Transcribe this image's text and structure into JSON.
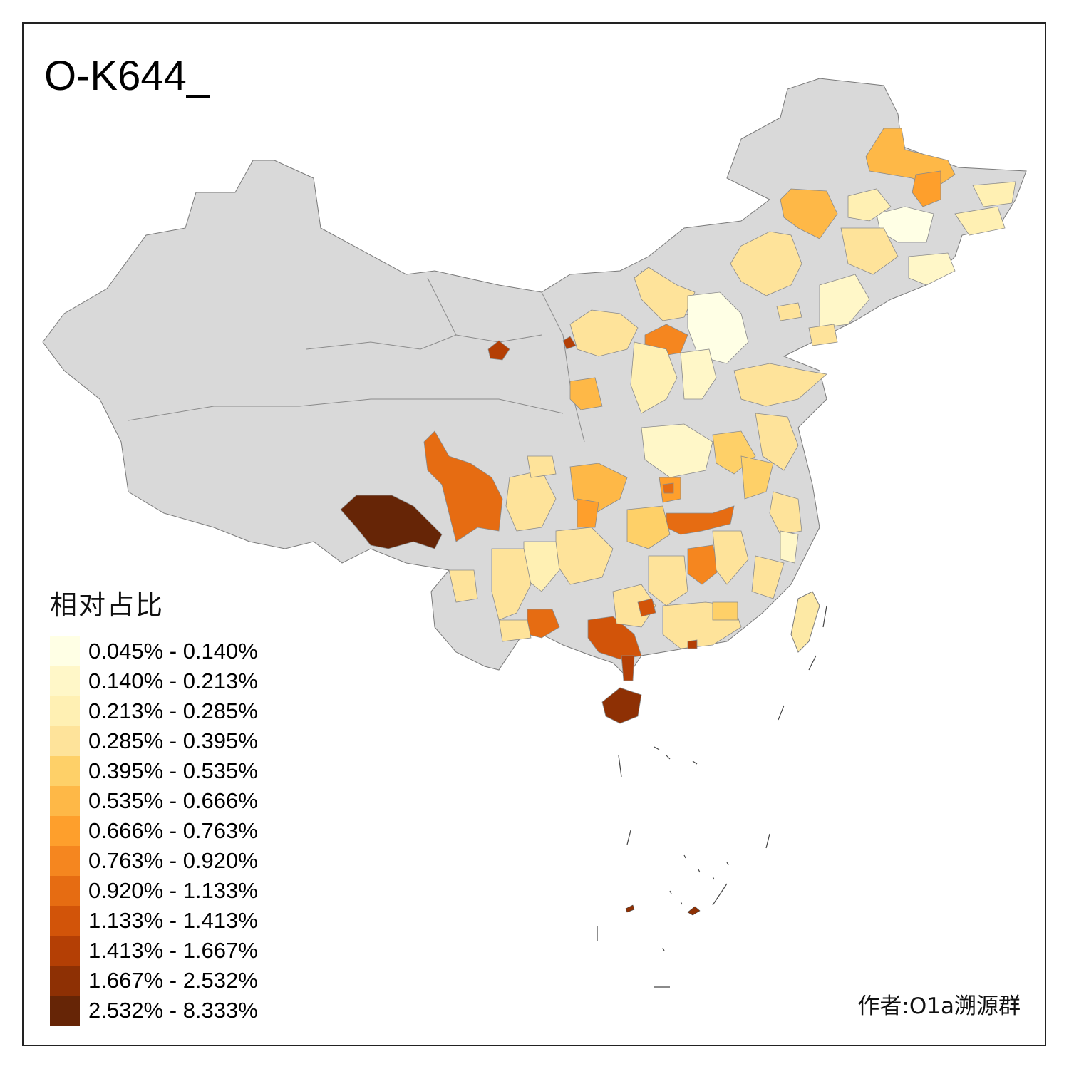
{
  "title": "O-K644_",
  "legend": {
    "title": "相对占比",
    "items": [
      {
        "label": "0.045% - 0.140%",
        "color": "#ffffe5"
      },
      {
        "label": "0.140% - 0.213%",
        "color": "#fff7c8"
      },
      {
        "label": "0.213% - 0.285%",
        "color": "#fff0b3"
      },
      {
        "label": "0.285% - 0.395%",
        "color": "#fee39a"
      },
      {
        "label": "0.395% - 0.535%",
        "color": "#fed068"
      },
      {
        "label": "0.535% - 0.666%",
        "color": "#feb847"
      },
      {
        "label": "0.666% - 0.763%",
        "color": "#fe9f2c"
      },
      {
        "label": "0.763% - 0.920%",
        "color": "#f5861f"
      },
      {
        "label": "0.920% - 1.133%",
        "color": "#e66c12"
      },
      {
        "label": "1.133% - 1.413%",
        "color": "#d25409"
      },
      {
        "label": "1.413% - 1.667%",
        "color": "#b43f05"
      },
      {
        "label": "1.667% - 2.532%",
        "color": "#8e3004"
      },
      {
        "label": "2.532% - 8.333%",
        "color": "#662506"
      }
    ]
  },
  "credit": "作者:O1a溯源群",
  "colors": {
    "no_data": "#d9d9d9",
    "boundary": "#7a7a7a"
  }
}
